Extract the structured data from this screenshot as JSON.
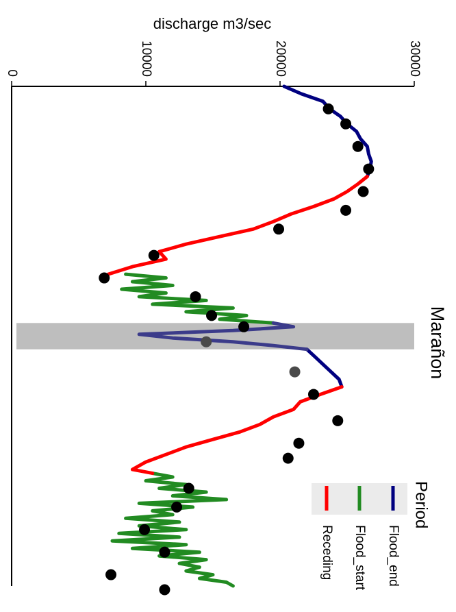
{
  "chart_data": {
    "type": "line",
    "orientation": "rotated-90-clockwise",
    "title": "Marañon",
    "ylabel": "discharge m3/sec",
    "ylim": [
      0,
      30000
    ],
    "yticks": [
      0,
      10000,
      20000,
      30000
    ],
    "grid": false,
    "legend": {
      "title": "Period",
      "placement": "bottom-right",
      "entries": [
        {
          "label": "Flood_end",
          "color": "#000080"
        },
        {
          "label": "Flood_start",
          "color": "#228B22"
        },
        {
          "label": "Receding",
          "color": "#FF0000"
        }
      ]
    },
    "highlight_band": {
      "x": [
        63,
        70
      ],
      "color": "#BEBEBE"
    },
    "x_range": [
      0,
      133
    ],
    "series": [
      {
        "name": "Flood_end",
        "color": "#000080",
        "segments": [
          {
            "x": [
              0,
              2,
              4,
              6,
              8,
              10,
              12,
              14,
              16,
              18,
              20,
              22,
              24
            ],
            "y": [
              20300,
              21600,
              23200,
              23700,
              24500,
              25000,
              25700,
              26000,
              26500,
              26600,
              26800,
              26700,
              26500
            ]
          },
          {
            "x": [
              70,
              72,
              74,
              76,
              78,
              80
            ],
            "y": [
              22000,
              22600,
              23200,
              23800,
              24400,
              24600
            ]
          }
        ]
      },
      {
        "name": "Flood_start",
        "color": "#228B22",
        "segments": [
          {
            "x": [
              50,
              51,
              52,
              53,
              54,
              55,
              56,
              57,
              58,
              59,
              60,
              61,
              62,
              63
            ],
            "y": [
              8500,
              11500,
              9000,
              12000,
              8200,
              11500,
              9500,
              14500,
              10500,
              16500,
              13000,
              17500,
              15500,
              19500
            ]
          },
          {
            "x": [
              103,
              104,
              105,
              106,
              107,
              108,
              109,
              110,
              111,
              112,
              113,
              114,
              115,
              116,
              117,
              118,
              119,
              120,
              121,
              122,
              123,
              124,
              125,
              126,
              127,
              128,
              129,
              130,
              131,
              132,
              133
            ],
            "y": [
              10500,
              12000,
              10000,
              13000,
              11000,
              14500,
              12000,
              16000,
              9500,
              13500,
              10500,
              12000,
              8500,
              12500,
              9500,
              13000,
              8000,
              12500,
              7500,
              13000,
              9000,
              14000,
              11000,
              14500,
              12500,
              14000,
              13000,
              15000,
              14000,
              16000,
              16500
            ]
          }
        ]
      },
      {
        "name": "Receding",
        "color": "#FF0000",
        "segments": [
          {
            "x": [
              24,
              26,
              28,
              30,
              32,
              34,
              36,
              38,
              40,
              42,
              44,
              46,
              48,
              50
            ],
            "y": [
              26500,
              25800,
              25000,
              24000,
              22500,
              20800,
              19500,
              18000,
              15500,
              13000,
              11000,
              11500,
              9000,
              7200
            ]
          },
          {
            "x": [
              80,
              82,
              84,
              86,
              88,
              90,
              92,
              94,
              96,
              98,
              100,
              102,
              103
            ],
            "y": [
              24600,
              23000,
              21500,
              21000,
              19500,
              18500,
              17000,
              15000,
              13000,
              11500,
              10000,
              9000,
              10500
            ]
          }
        ]
      },
      {
        "name": "highlighted",
        "color": "#3B3B8A",
        "segments": [
          {
            "x": [
              63,
              64,
              65,
              66,
              67,
              68,
              69,
              70
            ],
            "y": [
              19500,
              21000,
              16500,
              9500,
              12000,
              16500,
              19500,
              22000
            ]
          }
        ]
      }
    ],
    "points": [
      {
        "x": 6,
        "y": 23600
      },
      {
        "x": 10,
        "y": 24900
      },
      {
        "x": 16,
        "y": 25800
      },
      {
        "x": 22,
        "y": 26600
      },
      {
        "x": 28,
        "y": 26200
      },
      {
        "x": 33,
        "y": 24900
      },
      {
        "x": 38,
        "y": 19900
      },
      {
        "x": 45,
        "y": 10600
      },
      {
        "x": 51,
        "y": 6900
      },
      {
        "x": 56,
        "y": 13700
      },
      {
        "x": 61,
        "y": 14900
      },
      {
        "x": 64,
        "y": 17300
      },
      {
        "x": 68,
        "y": 14500,
        "highlight": true
      },
      {
        "x": 76,
        "y": 21100,
        "highlight": true
      },
      {
        "x": 82,
        "y": 22500
      },
      {
        "x": 89,
        "y": 24300
      },
      {
        "x": 95,
        "y": 21400
      },
      {
        "x": 99,
        "y": 20600
      },
      {
        "x": 107,
        "y": 13200
      },
      {
        "x": 112,
        "y": 12300
      },
      {
        "x": 118,
        "y": 9900
      },
      {
        "x": 124,
        "y": 11400
      },
      {
        "x": 130,
        "y": 7400
      },
      {
        "x": 134,
        "y": 11400
      }
    ]
  }
}
